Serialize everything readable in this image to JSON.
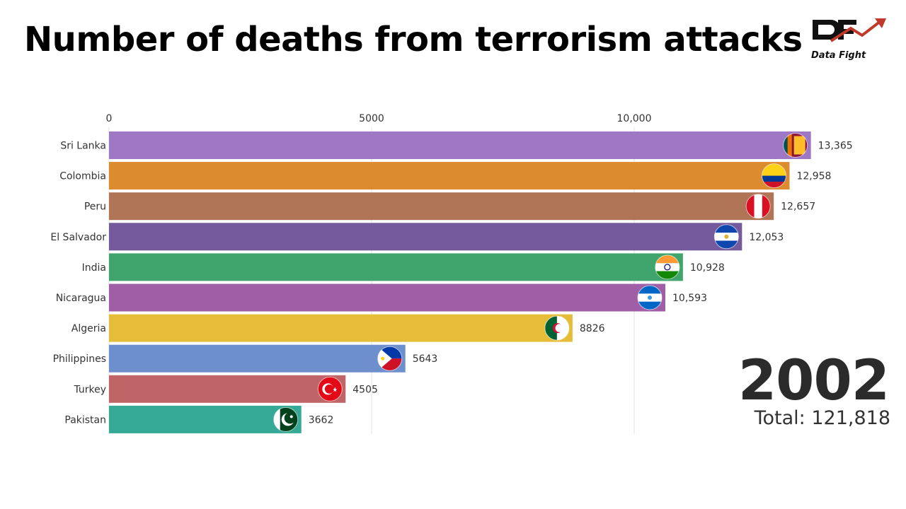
{
  "title": "Number of deaths from terrorism attacks",
  "logo": {
    "text": "Data Fight",
    "icon": "df-trend-arrow-logo"
  },
  "year": "2002",
  "total": {
    "label": "Total:",
    "value": "121,818"
  },
  "chart_data": {
    "type": "bar",
    "orientation": "horizontal",
    "title": "Number of deaths from terrorism attacks",
    "xlabel": "",
    "ylabel": "",
    "xlim": [
      0,
      14500
    ],
    "x_ticks": [
      0,
      5000,
      10000
    ],
    "x_tick_labels": [
      "0",
      "5000",
      "10,000"
    ],
    "grid": "vertical",
    "categories": [
      "Sri Lanka",
      "Colombia",
      "Peru",
      "El Salvador",
      "India",
      "Nicaragua",
      "Algeria",
      "Philippines",
      "Turkey",
      "Pakistan"
    ],
    "values": [
      13365,
      12958,
      12657,
      12053,
      10928,
      10593,
      8826,
      5643,
      4505,
      3662
    ],
    "value_labels": [
      "13,365",
      "12,958",
      "12,657",
      "12,053",
      "10,928",
      "10,593",
      "8826",
      "5643",
      "4505",
      "3662"
    ],
    "colors": [
      "#9e78c4",
      "#dd8b2f",
      "#b07557",
      "#745a9c",
      "#3fa56c",
      "#9f5ea6",
      "#e6bd38",
      "#6e8fcd",
      "#bf6568",
      "#36a896"
    ],
    "flag_icons": [
      "flag-sri-lanka-icon",
      "flag-colombia-icon",
      "flag-peru-icon",
      "flag-el-salvador-icon",
      "flag-india-icon",
      "flag-nicaragua-icon",
      "flag-algeria-icon",
      "flag-philippines-icon",
      "flag-turkey-icon",
      "flag-pakistan-icon"
    ]
  }
}
